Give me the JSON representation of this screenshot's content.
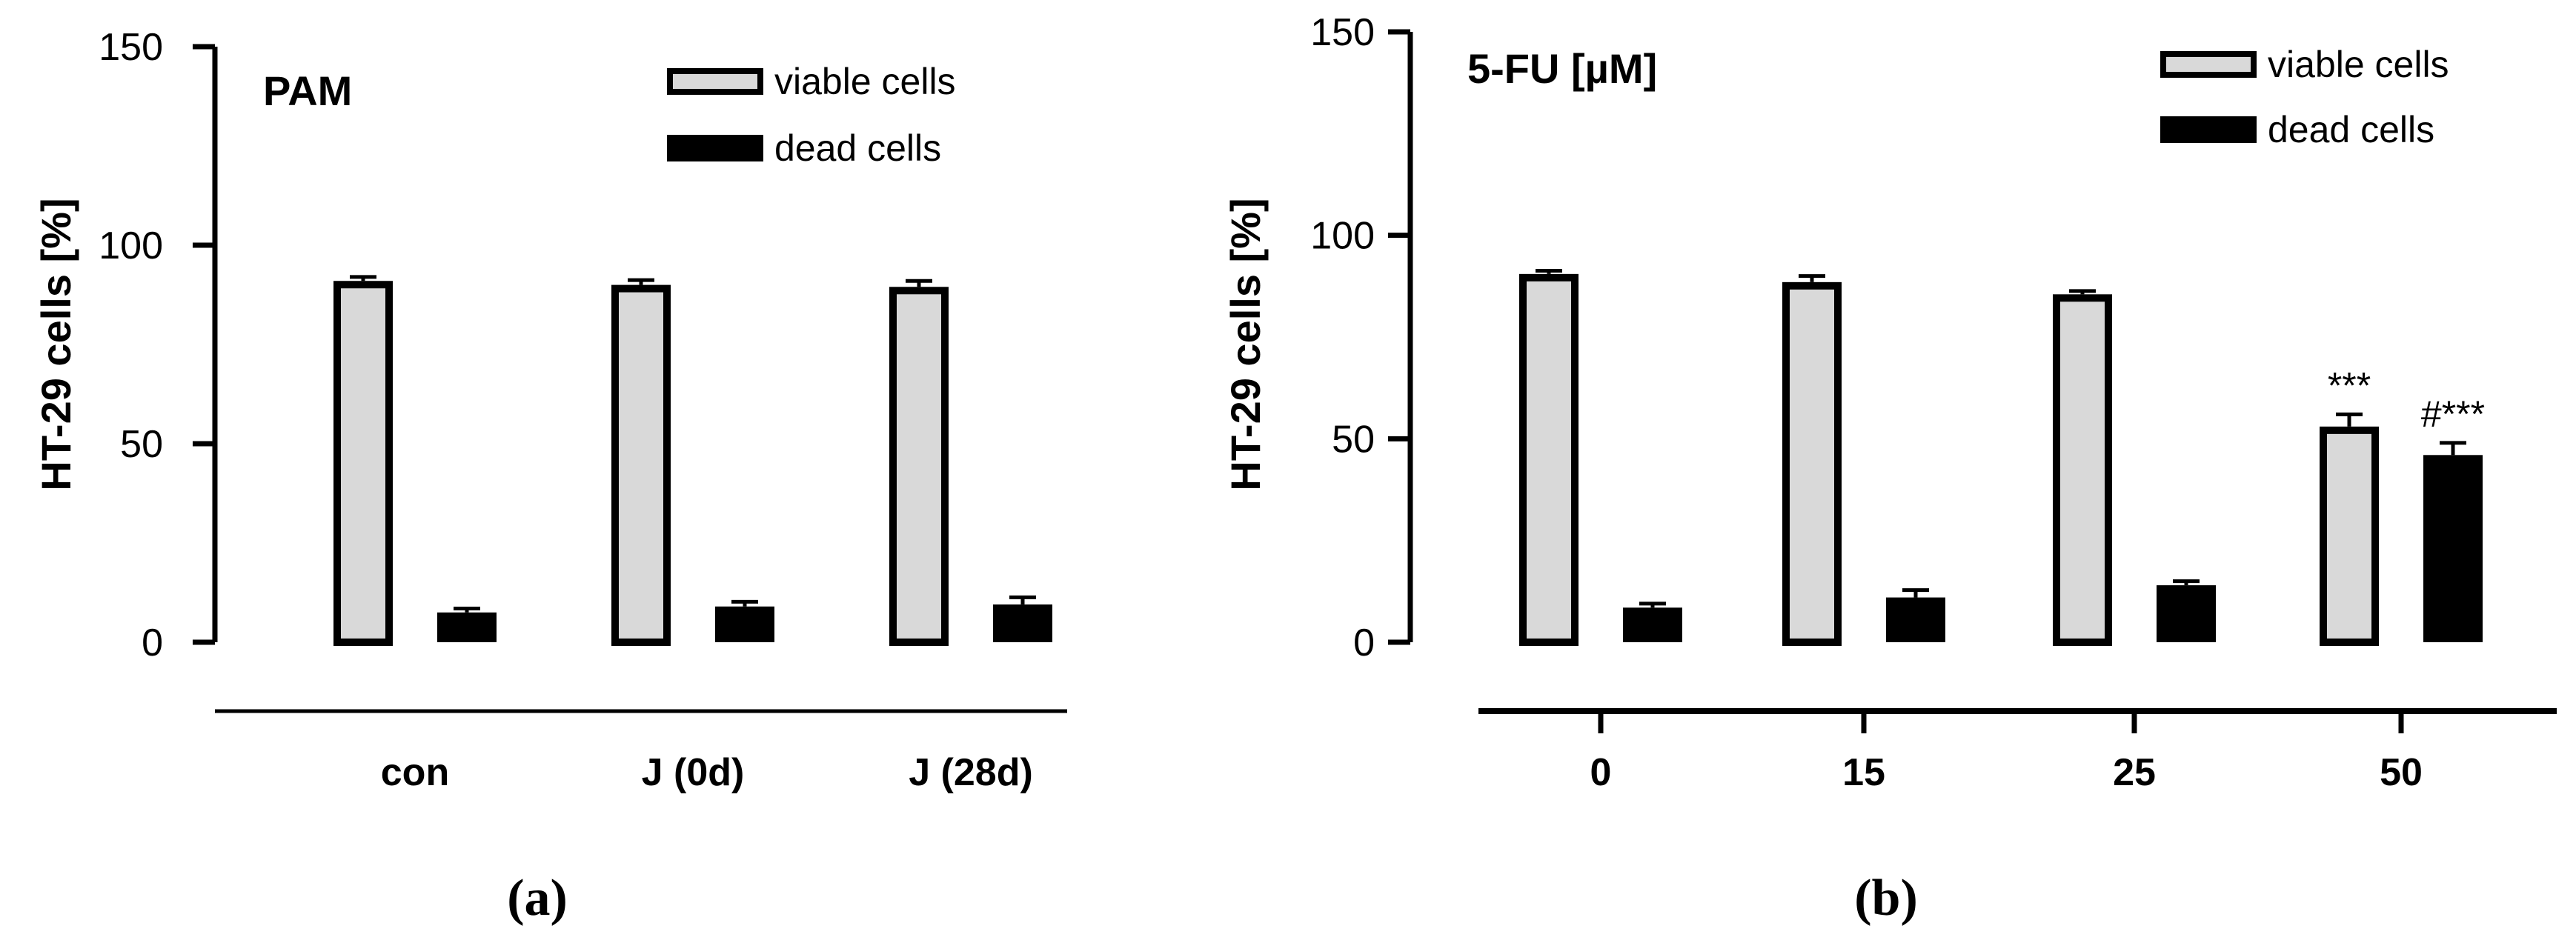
{
  "chart_data": [
    {
      "type": "bar",
      "panel_label": "(a)",
      "inset_title": "PAM",
      "ylabel": "HT-29 cells [%]",
      "xlabel": "",
      "ylim": [
        0,
        150
      ],
      "yticks": [
        0,
        50,
        100,
        150
      ],
      "categories": [
        "con",
        "J (0d)",
        "J (28d)"
      ],
      "series": [
        {
          "name": "viable cells",
          "fill": "#d9d9d9",
          "values": [
            91,
            90,
            89.5
          ],
          "errors": [
            1.0,
            1.2,
            1.5
          ],
          "annotations": [
            "",
            "",
            ""
          ]
        },
        {
          "name": "dead cells",
          "fill": "#000000",
          "values": [
            7.5,
            9,
            9.5
          ],
          "errors": [
            1.0,
            1.2,
            1.8
          ],
          "annotations": [
            "",
            "",
            ""
          ]
        }
      ],
      "legend": "top-right",
      "grid": false
    },
    {
      "type": "bar",
      "panel_label": "(b)",
      "inset_title": "5-FU [µM]",
      "ylabel": "HT-29 cells [%]",
      "xlabel": "",
      "ylim": [
        0,
        150
      ],
      "yticks": [
        0,
        50,
        100,
        150
      ],
      "categories": [
        "0",
        "15",
        "25",
        "50"
      ],
      "series": [
        {
          "name": "viable cells",
          "fill": "#d9d9d9",
          "values": [
            90.5,
            88.5,
            85.5,
            53
          ],
          "errors": [
            0.8,
            1.5,
            0.8,
            3.0
          ],
          "annotations": [
            "",
            "",
            "",
            "***"
          ]
        },
        {
          "name": "dead cells",
          "fill": "#000000",
          "values": [
            8.5,
            11,
            14,
            46
          ],
          "errors": [
            1.0,
            1.8,
            1.0,
            3.0
          ],
          "annotations": [
            "",
            "",
            "",
            "#***"
          ]
        }
      ],
      "legend": "top-right",
      "grid": false
    }
  ]
}
